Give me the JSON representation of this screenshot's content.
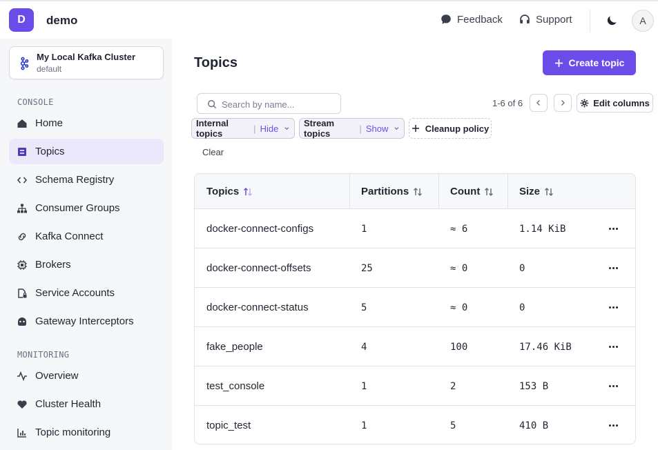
{
  "app": {
    "logo_letter": "D",
    "name": "demo"
  },
  "header": {
    "feedback": "Feedback",
    "support": "Support",
    "avatar": "A"
  },
  "cluster": {
    "name": "My Local Kafka Cluster",
    "env": "default"
  },
  "sidebar": {
    "console_label": "CONSOLE",
    "monitoring_label": "MONITORING",
    "items": [
      {
        "label": "Home",
        "icon": "home-icon"
      },
      {
        "label": "Topics",
        "icon": "topics-icon",
        "active": true
      },
      {
        "label": "Schema Registry",
        "icon": "code-icon"
      },
      {
        "label": "Consumer Groups",
        "icon": "hierarchy-icon"
      },
      {
        "label": "Kafka Connect",
        "icon": "link-icon"
      },
      {
        "label": "Brokers",
        "icon": "chip-icon"
      },
      {
        "label": "Service Accounts",
        "icon": "file-lock-icon"
      },
      {
        "label": "Gateway Interceptors",
        "icon": "gateway-icon"
      }
    ],
    "monitoring_items": [
      {
        "label": "Overview",
        "icon": "activity-icon"
      },
      {
        "label": "Cluster Health",
        "icon": "heart-icon"
      },
      {
        "label": "Topic monitoring",
        "icon": "bar-chart-icon"
      }
    ]
  },
  "main": {
    "title": "Topics",
    "create_button": "Create topic",
    "search_placeholder": "Search by name...",
    "pagination": "1-6 of 6",
    "edit_columns": "Edit columns",
    "filters": {
      "internal_label": "Internal topics",
      "internal_value": "Hide",
      "stream_label": "Stream topics",
      "stream_value": "Show",
      "cleanup_label": "Cleanup policy"
    },
    "clear": "Clear"
  },
  "table": {
    "columns": [
      "Topics",
      "Partitions",
      "Count",
      "Size"
    ],
    "rows": [
      {
        "name": "docker-connect-configs",
        "partitions": "1",
        "count": "≈ 6",
        "size": "1.14 KiB"
      },
      {
        "name": "docker-connect-offsets",
        "partitions": "25",
        "count": "≈ 0",
        "size": "0"
      },
      {
        "name": "docker-connect-status",
        "partitions": "5",
        "count": "≈ 0",
        "size": "0"
      },
      {
        "name": "fake_people",
        "partitions": "4",
        "count": "100",
        "size": "17.46 KiB"
      },
      {
        "name": "test_console",
        "partitions": "1",
        "count": "2",
        "size": "153 B"
      },
      {
        "name": "topic_test",
        "partitions": "1",
        "count": "5",
        "size": "410 B"
      }
    ]
  },
  "colors": {
    "accent": "#6c4ce8",
    "active_bg": "#ebe8fb",
    "sidebar_bg": "#f6f7f9"
  }
}
